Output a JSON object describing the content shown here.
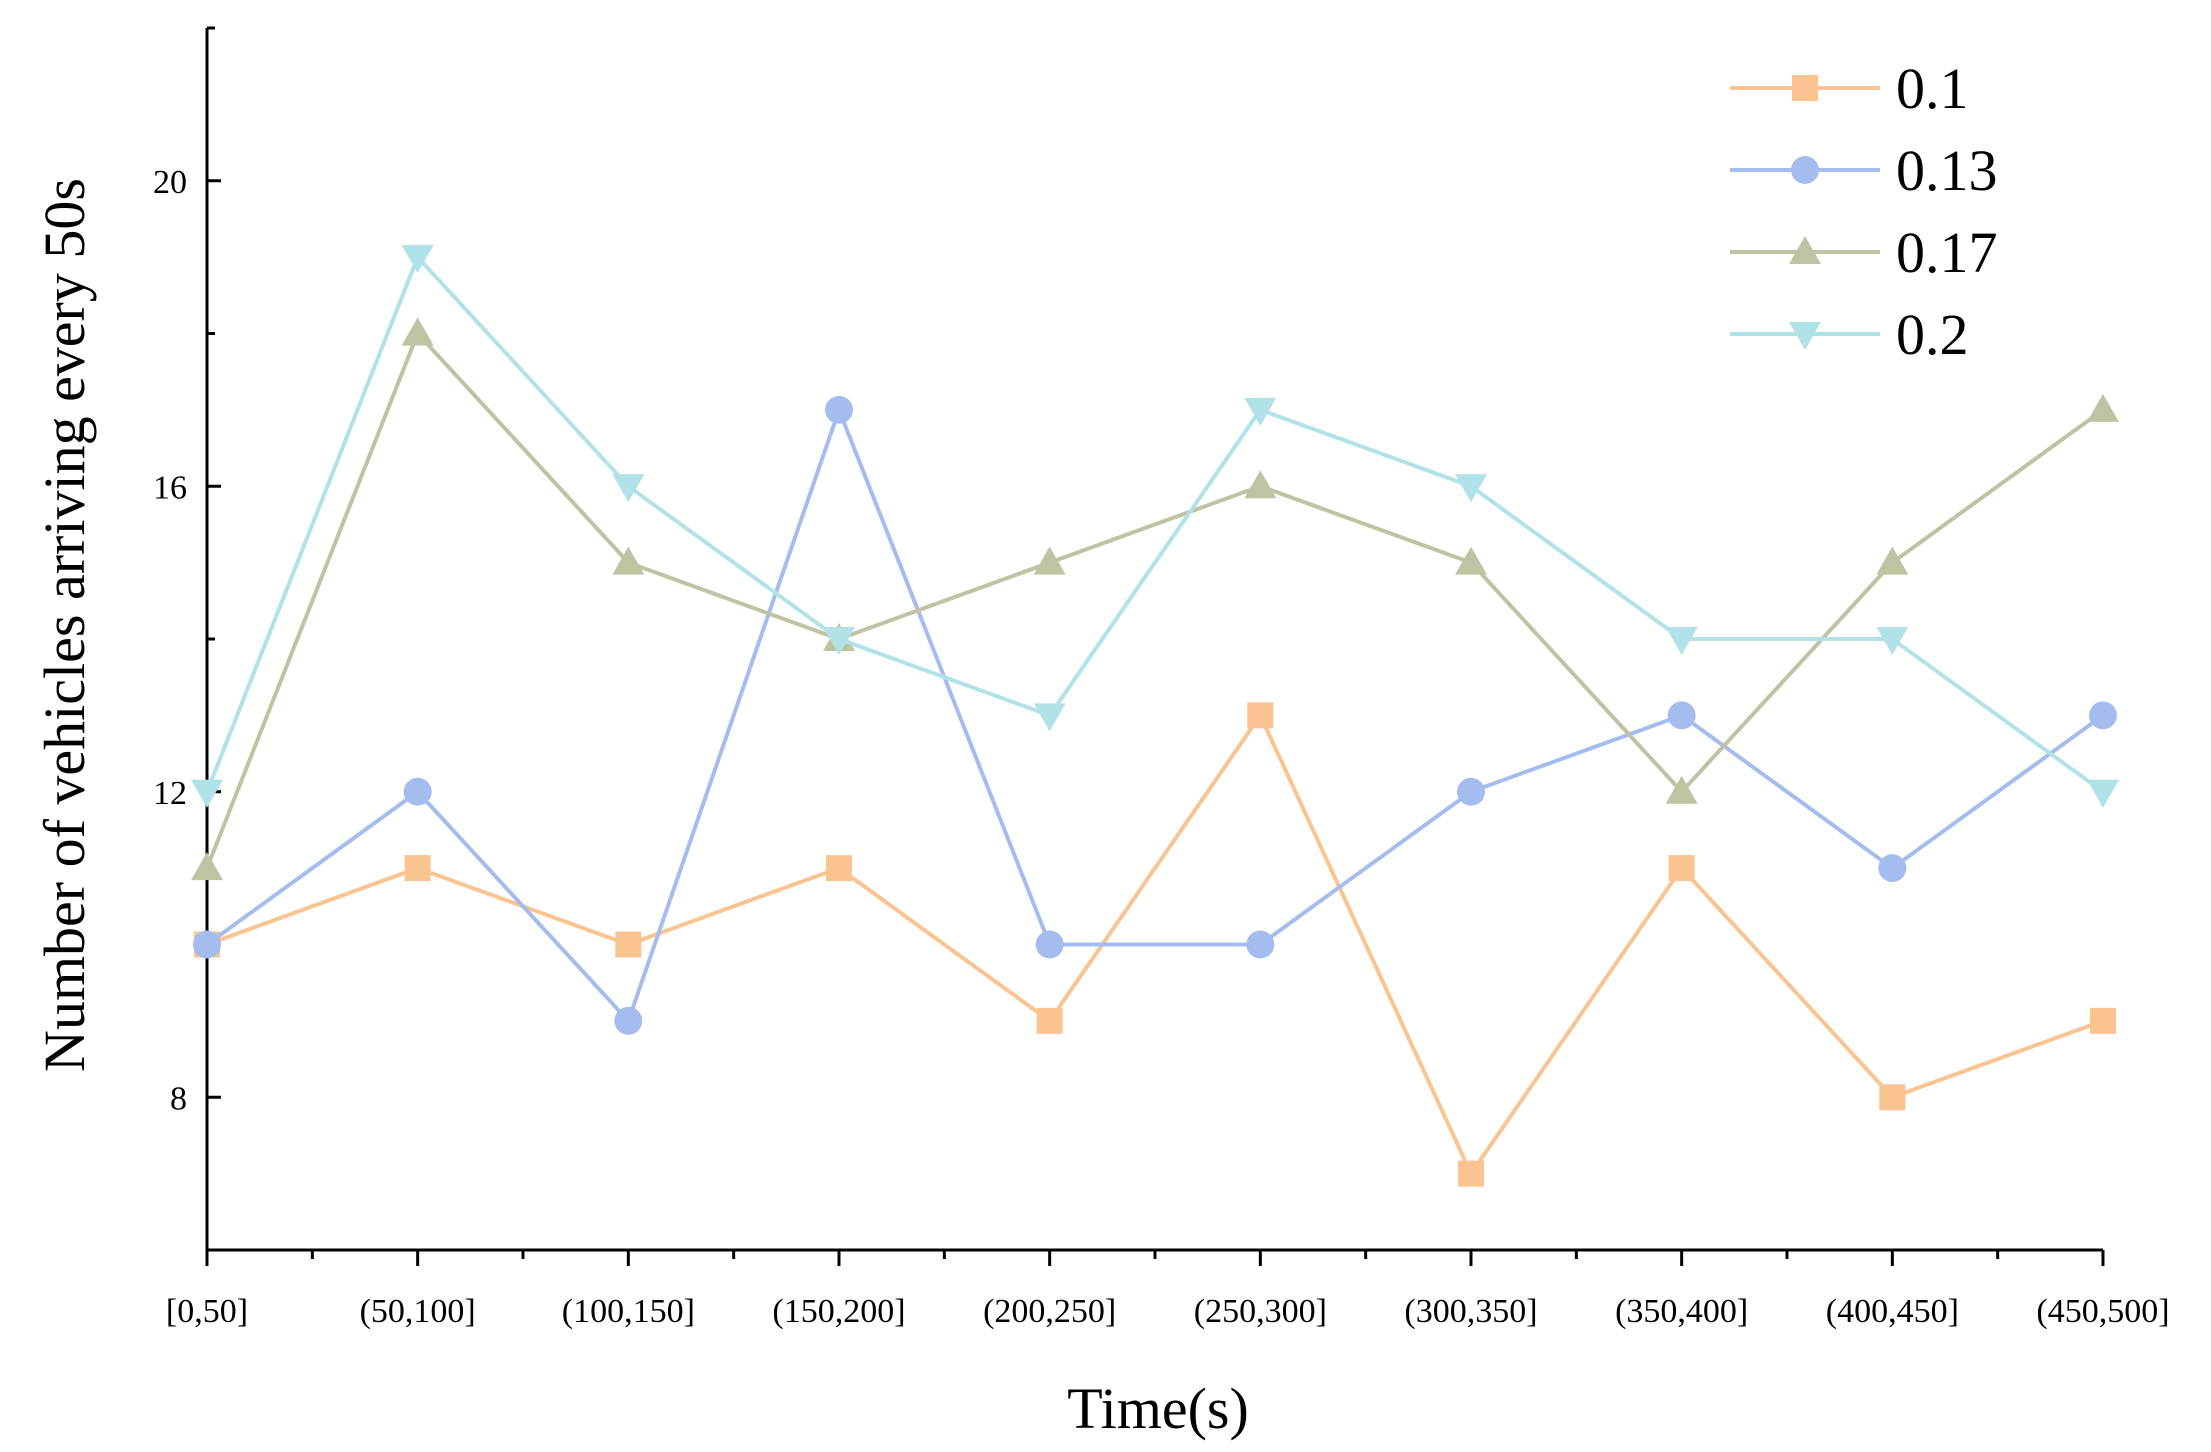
{
  "chart_data": {
    "type": "line",
    "title": "",
    "xlabel": "Time(s)",
    "ylabel": "Number of vehicles arriving every 50s",
    "categories": [
      "[0,50]",
      "(50,100]",
      "(100,150]",
      "(150,200]",
      "(200,250]",
      "(250,300]",
      "(300,350]",
      "(350,400]",
      "(400,450]",
      "(450,500]"
    ],
    "ylim": [
      6,
      22
    ],
    "yticks": [
      8,
      12,
      16,
      20
    ],
    "grid": false,
    "legend_position": "top-right",
    "series": [
      {
        "name": "0.1",
        "marker": "square",
        "color": "#F9C490",
        "values": [
          10,
          11,
          10,
          11,
          9,
          13,
          7,
          11,
          8,
          9
        ]
      },
      {
        "name": "0.13",
        "marker": "circle",
        "color": "#A5BDEE",
        "values": [
          10,
          12,
          9,
          17,
          10,
          10,
          12,
          13,
          11,
          13
        ]
      },
      {
        "name": "0.17",
        "marker": "triangle-up",
        "color": "#BFC3A1",
        "values": [
          11,
          18,
          15,
          14,
          15,
          16,
          15,
          12,
          15,
          17
        ]
      },
      {
        "name": "0.2",
        "marker": "triangle-down",
        "color": "#B0E2E8",
        "values": [
          12,
          19,
          16,
          14,
          13,
          17,
          16,
          14,
          14,
          12
        ]
      }
    ]
  }
}
